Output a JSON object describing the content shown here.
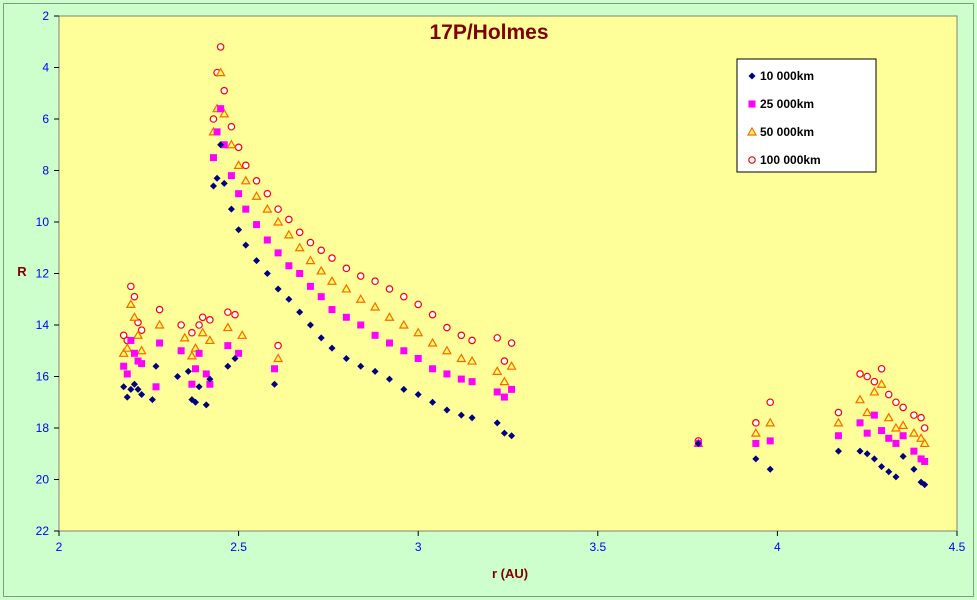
{
  "chart_data": {
    "type": "scatter",
    "title": "17P/Holmes",
    "xlabel": "r (AU)",
    "ylabel": "R",
    "xlim": [
      2,
      4.5
    ],
    "ylim": [
      2,
      22
    ],
    "y_inverted": true,
    "x_ticks": [
      "2",
      "2.5",
      "3",
      "3.5",
      "4",
      "4.5"
    ],
    "y_ticks": [
      "2",
      "4",
      "6",
      "8",
      "10",
      "12",
      "14",
      "16",
      "18",
      "20",
      "22"
    ],
    "grid": false,
    "legend_position": "top-right",
    "plot_background": "#ffff99",
    "page_background": "#ccffcc",
    "series": [
      {
        "name": "10 000km",
        "marker": "diamond",
        "color": "#000080",
        "points": [
          [
            2.18,
            16.4
          ],
          [
            2.19,
            16.8
          ],
          [
            2.2,
            16.5
          ],
          [
            2.21,
            16.3
          ],
          [
            2.22,
            16.5
          ],
          [
            2.23,
            16.7
          ],
          [
            2.26,
            16.9
          ],
          [
            2.27,
            15.6
          ],
          [
            2.33,
            16.0
          ],
          [
            2.36,
            15.8
          ],
          [
            2.37,
            16.9
          ],
          [
            2.38,
            17.0
          ],
          [
            2.39,
            16.4
          ],
          [
            2.41,
            17.1
          ],
          [
            2.42,
            16.1
          ],
          [
            2.43,
            8.6
          ],
          [
            2.44,
            8.3
          ],
          [
            2.45,
            7.0
          ],
          [
            2.46,
            8.5
          ],
          [
            2.48,
            9.5
          ],
          [
            2.5,
            10.3
          ],
          [
            2.52,
            10.9
          ],
          [
            2.55,
            11.5
          ],
          [
            2.58,
            12.0
          ],
          [
            2.61,
            12.6
          ],
          [
            2.64,
            13.0
          ],
          [
            2.67,
            13.5
          ],
          [
            2.7,
            14.0
          ],
          [
            2.73,
            14.5
          ],
          [
            2.76,
            14.9
          ],
          [
            2.8,
            15.3
          ],
          [
            2.84,
            15.6
          ],
          [
            2.88,
            15.8
          ],
          [
            2.92,
            16.1
          ],
          [
            2.96,
            16.5
          ],
          [
            3.0,
            16.7
          ],
          [
            3.04,
            17.0
          ],
          [
            3.08,
            17.3
          ],
          [
            3.12,
            17.5
          ],
          [
            3.15,
            17.6
          ],
          [
            3.22,
            17.8
          ],
          [
            3.24,
            18.2
          ],
          [
            3.26,
            18.3
          ],
          [
            2.47,
            15.6
          ],
          [
            2.49,
            15.3
          ],
          [
            2.6,
            16.3
          ],
          [
            3.78,
            18.6
          ],
          [
            3.94,
            19.2
          ],
          [
            3.98,
            19.6
          ],
          [
            4.17,
            18.9
          ],
          [
            4.23,
            18.9
          ],
          [
            4.25,
            19.0
          ],
          [
            4.27,
            19.2
          ],
          [
            4.29,
            19.5
          ],
          [
            4.31,
            19.7
          ],
          [
            4.33,
            19.9
          ],
          [
            4.35,
            19.1
          ],
          [
            4.38,
            19.6
          ],
          [
            4.4,
            20.1
          ],
          [
            4.41,
            20.2
          ]
        ]
      },
      {
        "name": "25 000km",
        "marker": "square",
        "color": "#ff00ff",
        "points": [
          [
            2.18,
            15.6
          ],
          [
            2.19,
            15.9
          ],
          [
            2.2,
            14.6
          ],
          [
            2.21,
            15.1
          ],
          [
            2.22,
            15.4
          ],
          [
            2.23,
            15.5
          ],
          [
            2.27,
            16.4
          ],
          [
            2.28,
            14.7
          ],
          [
            2.34,
            15.0
          ],
          [
            2.37,
            16.3
          ],
          [
            2.38,
            15.7
          ],
          [
            2.39,
            15.1
          ],
          [
            2.41,
            15.9
          ],
          [
            2.42,
            16.3
          ],
          [
            2.43,
            7.5
          ],
          [
            2.44,
            6.5
          ],
          [
            2.45,
            5.6
          ],
          [
            2.46,
            7.0
          ],
          [
            2.48,
            8.2
          ],
          [
            2.5,
            8.9
          ],
          [
            2.52,
            9.5
          ],
          [
            2.55,
            10.1
          ],
          [
            2.58,
            10.7
          ],
          [
            2.61,
            11.2
          ],
          [
            2.64,
            11.7
          ],
          [
            2.67,
            12.0
          ],
          [
            2.7,
            12.5
          ],
          [
            2.73,
            12.9
          ],
          [
            2.76,
            13.4
          ],
          [
            2.8,
            13.7
          ],
          [
            2.84,
            14.0
          ],
          [
            2.88,
            14.4
          ],
          [
            2.92,
            14.7
          ],
          [
            2.96,
            15.0
          ],
          [
            3.0,
            15.3
          ],
          [
            3.04,
            15.7
          ],
          [
            3.08,
            15.9
          ],
          [
            3.12,
            16.1
          ],
          [
            3.15,
            16.2
          ],
          [
            3.22,
            16.6
          ],
          [
            3.24,
            16.8
          ],
          [
            3.26,
            16.5
          ],
          [
            2.47,
            14.8
          ],
          [
            2.5,
            15.1
          ],
          [
            2.6,
            15.7
          ],
          [
            3.78,
            18.6
          ],
          [
            3.94,
            18.6
          ],
          [
            3.98,
            18.5
          ],
          [
            4.17,
            18.3
          ],
          [
            4.23,
            17.8
          ],
          [
            4.25,
            18.2
          ],
          [
            4.27,
            17.5
          ],
          [
            4.29,
            18.1
          ],
          [
            4.31,
            18.4
          ],
          [
            4.33,
            18.6
          ],
          [
            4.35,
            18.3
          ],
          [
            4.38,
            18.9
          ],
          [
            4.4,
            19.2
          ],
          [
            4.41,
            19.3
          ]
        ]
      },
      {
        "name": "50 000km",
        "marker": "triangle",
        "color": "#ff6600",
        "points": [
          [
            2.18,
            15.1
          ],
          [
            2.19,
            14.9
          ],
          [
            2.2,
            13.2
          ],
          [
            2.21,
            13.7
          ],
          [
            2.22,
            14.4
          ],
          [
            2.23,
            15.0
          ],
          [
            2.28,
            14.0
          ],
          [
            2.35,
            14.5
          ],
          [
            2.37,
            15.2
          ],
          [
            2.38,
            14.9
          ],
          [
            2.4,
            14.3
          ],
          [
            2.42,
            14.6
          ],
          [
            2.43,
            6.5
          ],
          [
            2.44,
            5.6
          ],
          [
            2.45,
            4.2
          ],
          [
            2.46,
            5.8
          ],
          [
            2.48,
            7.0
          ],
          [
            2.5,
            7.8
          ],
          [
            2.52,
            8.4
          ],
          [
            2.55,
            9.0
          ],
          [
            2.58,
            9.5
          ],
          [
            2.61,
            10.0
          ],
          [
            2.64,
            10.5
          ],
          [
            2.67,
            11.0
          ],
          [
            2.7,
            11.5
          ],
          [
            2.73,
            11.9
          ],
          [
            2.76,
            12.3
          ],
          [
            2.8,
            12.6
          ],
          [
            2.84,
            13.0
          ],
          [
            2.88,
            13.3
          ],
          [
            2.92,
            13.7
          ],
          [
            2.96,
            14.0
          ],
          [
            3.0,
            14.3
          ],
          [
            3.04,
            14.7
          ],
          [
            3.08,
            15.0
          ],
          [
            3.12,
            15.3
          ],
          [
            3.15,
            15.4
          ],
          [
            3.22,
            15.8
          ],
          [
            3.24,
            16.2
          ],
          [
            3.26,
            15.6
          ],
          [
            2.47,
            14.1
          ],
          [
            2.51,
            14.4
          ],
          [
            2.61,
            15.3
          ],
          [
            3.78,
            18.6
          ],
          [
            3.94,
            18.2
          ],
          [
            3.98,
            17.8
          ],
          [
            4.17,
            17.8
          ],
          [
            4.23,
            16.9
          ],
          [
            4.25,
            17.4
          ],
          [
            4.27,
            16.6
          ],
          [
            4.29,
            16.3
          ],
          [
            4.31,
            17.6
          ],
          [
            4.33,
            18.0
          ],
          [
            4.35,
            17.9
          ],
          [
            4.38,
            18.2
          ],
          [
            4.4,
            18.4
          ],
          [
            4.41,
            18.6
          ]
        ]
      },
      {
        "name": "100 000km",
        "marker": "circle",
        "color": "#ff0000",
        "points": [
          [
            2.18,
            14.4
          ],
          [
            2.19,
            14.6
          ],
          [
            2.2,
            12.5
          ],
          [
            2.21,
            12.9
          ],
          [
            2.22,
            13.9
          ],
          [
            2.23,
            14.2
          ],
          [
            2.28,
            13.4
          ],
          [
            2.34,
            14.0
          ],
          [
            2.37,
            14.3
          ],
          [
            2.39,
            14.0
          ],
          [
            2.4,
            13.7
          ],
          [
            2.42,
            13.8
          ],
          [
            2.43,
            6.0
          ],
          [
            2.44,
            4.2
          ],
          [
            2.45,
            3.2
          ],
          [
            2.46,
            4.9
          ],
          [
            2.48,
            6.3
          ],
          [
            2.5,
            7.1
          ],
          [
            2.52,
            7.8
          ],
          [
            2.55,
            8.4
          ],
          [
            2.58,
            8.9
          ],
          [
            2.61,
            9.5
          ],
          [
            2.64,
            9.9
          ],
          [
            2.67,
            10.4
          ],
          [
            2.7,
            10.8
          ],
          [
            2.73,
            11.1
          ],
          [
            2.76,
            11.4
          ],
          [
            2.8,
            11.8
          ],
          [
            2.84,
            12.1
          ],
          [
            2.88,
            12.3
          ],
          [
            2.92,
            12.6
          ],
          [
            2.96,
            12.9
          ],
          [
            3.0,
            13.2
          ],
          [
            3.04,
            13.6
          ],
          [
            3.08,
            14.1
          ],
          [
            3.12,
            14.4
          ],
          [
            3.15,
            14.6
          ],
          [
            3.22,
            14.5
          ],
          [
            3.24,
            15.4
          ],
          [
            3.26,
            14.7
          ],
          [
            2.47,
            13.5
          ],
          [
            2.49,
            13.6
          ],
          [
            2.61,
            14.8
          ],
          [
            3.78,
            18.5
          ],
          [
            3.94,
            17.8
          ],
          [
            3.98,
            17.0
          ],
          [
            4.17,
            17.4
          ],
          [
            4.23,
            15.9
          ],
          [
            4.25,
            16.0
          ],
          [
            4.27,
            16.2
          ],
          [
            4.29,
            15.7
          ],
          [
            4.31,
            16.7
          ],
          [
            4.33,
            17.0
          ],
          [
            4.35,
            17.2
          ],
          [
            4.38,
            17.5
          ],
          [
            4.4,
            17.6
          ],
          [
            4.41,
            18.0
          ]
        ]
      }
    ]
  }
}
